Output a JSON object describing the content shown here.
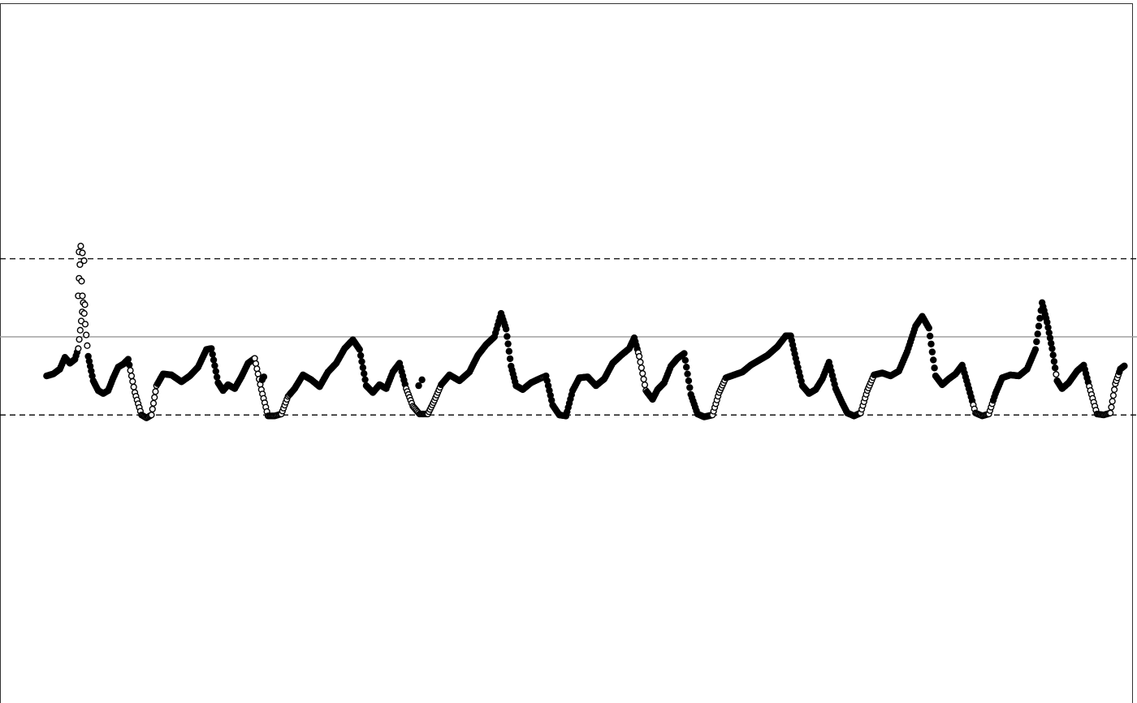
{
  "chart_data": {
    "type": "scatter",
    "title": "",
    "xlabel": "",
    "ylabel": "",
    "xlim": [
      -2.8,
      65.5
    ],
    "ylim": [
      -2.7,
      4.5
    ],
    "grid": false,
    "legend": "none",
    "reference_lines": [
      {
        "value": 0.25,
        "style": "dashed",
        "color": "#000000"
      },
      {
        "value": 1.05,
        "style": "solid",
        "color": "#999999"
      },
      {
        "value": 1.85,
        "style": "dashed",
        "color": "#000000"
      }
    ],
    "marker_colors": {
      "filled": "#000000",
      "open_fill": "#ffffff",
      "open_stroke": "#000000"
    },
    "series": [
      {
        "marker": "filled",
        "keypoints": [
          [
            0.0,
            0.65
          ],
          [
            0.4,
            0.67
          ],
          [
            0.8,
            0.72
          ],
          [
            1.1,
            0.84
          ],
          [
            1.4,
            0.78
          ],
          [
            1.7,
            0.82
          ],
          [
            1.9,
            0.93
          ],
          [
            2.2,
            1.4
          ],
          [
            2.5,
            0.85
          ],
          [
            2.8,
            0.6
          ],
          [
            3.1,
            0.5
          ],
          [
            3.4,
            0.47
          ],
          [
            3.7,
            0.5
          ],
          [
            4.0,
            0.63
          ],
          [
            4.3,
            0.74
          ],
          [
            4.6,
            0.77
          ],
          [
            4.9,
            0.82
          ]
        ],
        "open_ranges": [
          [
            1.85,
            2.45
          ],
          [
            4.85,
            5.6
          ]
        ]
      },
      {
        "marker": "filled",
        "keypoints": [
          [
            4.9,
            0.82
          ],
          [
            5.3,
            0.48
          ],
          [
            5.7,
            0.25
          ],
          [
            6.0,
            0.22
          ],
          [
            6.3,
            0.25
          ],
          [
            6.6,
            0.55
          ],
          [
            7.0,
            0.67
          ],
          [
            7.5,
            0.66
          ],
          [
            8.1,
            0.59
          ],
          [
            8.6,
            0.65
          ],
          [
            9.1,
            0.74
          ],
          [
            9.6,
            0.92
          ],
          [
            9.9,
            0.93
          ]
        ],
        "open_ranges": [
          [
            5.0,
            6.6
          ]
        ]
      },
      {
        "marker": "filled",
        "keypoints": [
          [
            9.9,
            0.93
          ],
          [
            10.3,
            0.58
          ],
          [
            10.6,
            0.5
          ],
          [
            10.9,
            0.56
          ],
          [
            11.3,
            0.52
          ],
          [
            11.7,
            0.64
          ],
          [
            12.1,
            0.78
          ],
          [
            12.5,
            0.83
          ],
          [
            12.9,
            0.51
          ],
          [
            13.3,
            0.24
          ],
          [
            13.7,
            0.24
          ],
          [
            14.1,
            0.26
          ],
          [
            14.5,
            0.44
          ],
          [
            14.9,
            0.52
          ]
        ],
        "open_ranges": [
          [
            12.5,
            14.6
          ]
        ]
      },
      {
        "marker": "filled",
        "keypoints": [
          [
            14.9,
            0.52
          ],
          [
            15.4,
            0.66
          ],
          [
            15.9,
            0.61
          ],
          [
            16.4,
            0.54
          ],
          [
            16.9,
            0.69
          ],
          [
            17.4,
            0.78
          ],
          [
            17.9,
            0.93
          ],
          [
            18.4,
            1.02
          ],
          [
            18.8,
            0.92
          ],
          [
            19.2,
            0.55
          ],
          [
            19.6,
            0.48
          ],
          [
            20.0,
            0.56
          ],
          [
            20.4,
            0.52
          ],
          [
            20.8,
            0.69
          ],
          [
            21.2,
            0.78
          ],
          [
            21.6,
            0.52
          ],
          [
            22.0,
            0.34
          ],
          [
            22.4,
            0.26
          ],
          [
            22.9,
            0.26
          ],
          [
            23.3,
            0.4
          ],
          [
            23.7,
            0.56
          ]
        ],
        "open_ranges": [
          [
            21.6,
            23.8
          ]
        ]
      },
      {
        "marker": "filled",
        "keypoints": [
          [
            23.7,
            0.56
          ],
          [
            24.2,
            0.66
          ],
          [
            24.8,
            0.6
          ],
          [
            25.4,
            0.69
          ],
          [
            25.9,
            0.86
          ],
          [
            26.4,
            0.97
          ],
          [
            26.9,
            1.05
          ],
          [
            27.3,
            1.29
          ],
          [
            27.6,
            1.13
          ],
          [
            27.9,
            0.75
          ],
          [
            28.2,
            0.55
          ],
          [
            28.6,
            0.51
          ],
          [
            29.1,
            0.58
          ],
          [
            29.6,
            0.62
          ],
          [
            30.0,
            0.65
          ]
        ],
        "open_ranges": [
          [
            29.8,
            31.3
          ]
        ]
      },
      {
        "marker": "filled",
        "keypoints": [
          [
            30.0,
            0.65
          ],
          [
            30.4,
            0.35
          ],
          [
            30.8,
            0.25
          ],
          [
            31.2,
            0.24
          ],
          [
            31.6,
            0.5
          ],
          [
            32.0,
            0.63
          ],
          [
            32.5,
            0.64
          ],
          [
            33.0,
            0.55
          ],
          [
            33.5,
            0.62
          ],
          [
            34.0,
            0.78
          ],
          [
            34.5,
            0.86
          ],
          [
            35.0,
            0.93
          ],
          [
            35.3,
            1.04
          ],
          [
            35.6,
            0.85
          ],
          [
            36.0,
            0.5
          ],
          [
            36.4,
            0.41
          ],
          [
            36.7,
            0.51
          ],
          [
            37.1,
            0.58
          ],
          [
            37.5,
            0.75
          ],
          [
            37.9,
            0.83
          ],
          [
            38.3,
            0.88
          ]
        ],
        "open_ranges": [
          [
            35.5,
            36.0
          ],
          [
            38.3,
            39.9
          ]
        ]
      },
      {
        "marker": "filled",
        "keypoints": [
          [
            38.3,
            0.88
          ],
          [
            38.7,
            0.46
          ],
          [
            39.1,
            0.26
          ],
          [
            39.5,
            0.23
          ],
          [
            40.0,
            0.25
          ],
          [
            40.4,
            0.48
          ],
          [
            40.8,
            0.63
          ],
          [
            41.3,
            0.66
          ],
          [
            41.8,
            0.69
          ],
          [
            42.3,
            0.76
          ],
          [
            42.8,
            0.81
          ],
          [
            43.3,
            0.86
          ],
          [
            43.9,
            0.95
          ],
          [
            44.4,
            1.06
          ],
          [
            44.7,
            1.06
          ],
          [
            45.0,
            0.83
          ],
          [
            45.4,
            0.55
          ],
          [
            45.8,
            0.47
          ]
        ],
        "open_ranges": [
          [
            39.9,
            40.9
          ]
        ]
      },
      {
        "marker": "filled",
        "keypoints": [
          [
            45.8,
            0.47
          ],
          [
            46.2,
            0.51
          ],
          [
            46.6,
            0.62
          ],
          [
            47.0,
            0.79
          ],
          [
            47.4,
            0.52
          ],
          [
            47.8,
            0.37
          ],
          [
            48.1,
            0.27
          ],
          [
            48.5,
            0.24
          ],
          [
            48.9,
            0.27
          ],
          [
            49.3,
            0.5
          ],
          [
            49.7,
            0.66
          ],
          [
            50.2,
            0.68
          ],
          [
            50.7,
            0.65
          ],
          [
            51.2,
            0.7
          ],
          [
            51.7,
            0.9
          ],
          [
            52.2,
            1.16
          ],
          [
            52.6,
            1.26
          ],
          [
            53.0,
            1.14
          ],
          [
            53.4,
            0.65
          ],
          [
            53.8,
            0.56
          ]
        ],
        "open_ranges": [
          [
            48.9,
            49.7
          ]
        ]
      },
      {
        "marker": "filled",
        "keypoints": [
          [
            53.8,
            0.56
          ],
          [
            54.2,
            0.62
          ],
          [
            54.6,
            0.67
          ],
          [
            55.0,
            0.76
          ],
          [
            55.4,
            0.52
          ],
          [
            55.8,
            0.27
          ],
          [
            56.2,
            0.24
          ],
          [
            56.6,
            0.26
          ],
          [
            57.0,
            0.47
          ],
          [
            57.4,
            0.63
          ],
          [
            57.9,
            0.66
          ],
          [
            58.4,
            0.65
          ],
          [
            58.9,
            0.72
          ],
          [
            59.4,
            0.92
          ],
          [
            59.8,
            1.4
          ],
          [
            60.1,
            1.2
          ],
          [
            60.4,
            0.93
          ],
          [
            60.7,
            0.6
          ]
        ],
        "open_ranges": [
          [
            55.6,
            56.8
          ],
          [
            60.6,
            61.3
          ]
        ]
      },
      {
        "marker": "filled",
        "keypoints": [
          [
            60.7,
            0.6
          ],
          [
            61.0,
            0.52
          ],
          [
            61.4,
            0.58
          ],
          [
            61.9,
            0.7
          ],
          [
            62.3,
            0.76
          ],
          [
            62.7,
            0.5
          ],
          [
            63.1,
            0.26
          ],
          [
            63.5,
            0.25
          ],
          [
            63.9,
            0.27
          ],
          [
            64.2,
            0.57
          ],
          [
            64.5,
            0.72
          ],
          [
            64.8,
            0.76
          ]
        ],
        "open_ranges": [
          [
            62.6,
            64.4
          ]
        ]
      }
    ],
    "outliers": [
      {
        "marker": "open",
        "points": [
          [
            1.95,
            1.92
          ],
          [
            2.05,
            1.98
          ],
          [
            2.15,
            1.91
          ],
          [
            2.25,
            1.83
          ],
          [
            2.0,
            1.79
          ],
          [
            1.95,
            1.65
          ],
          [
            2.1,
            1.62
          ],
          [
            1.9,
            1.47
          ],
          [
            2.15,
            1.47
          ],
          [
            2.3,
            1.38
          ]
        ]
      },
      {
        "marker": "filled",
        "points": [
          [
            12.95,
            0.61
          ],
          [
            13.05,
            0.64
          ],
          [
            22.35,
            0.55
          ],
          [
            22.55,
            0.61
          ]
        ]
      }
    ]
  }
}
